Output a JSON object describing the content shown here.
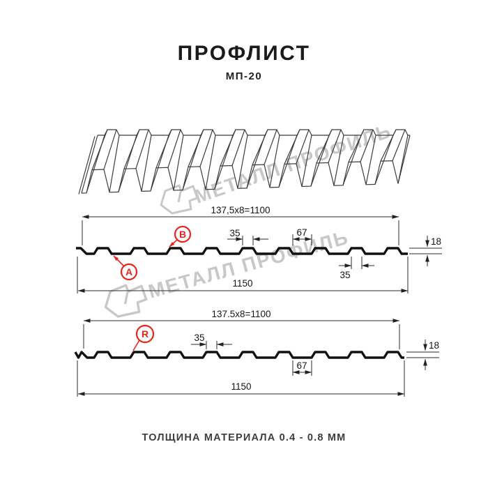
{
  "page": {
    "title": "ПРОФЛИСТ",
    "subtitle": "МП-20",
    "footer_note": "ТОЛЩИНА МАТЕРИАЛА 0.4 - 0.8 ММ"
  },
  "watermark": {
    "text": "МЕТАЛЛ ПРОФИЛЬ"
  },
  "colors": {
    "accent_red": "#e8251d",
    "line_dark": "#1c1c1c",
    "watermark_gray": "#c8c8c8"
  },
  "profile_top": {
    "module_width": "137,5x8=1100",
    "overall_width": "1150",
    "rib_top_width": "35",
    "valley_width": "67",
    "height": "18",
    "rib_bottom_width": "35",
    "label_a": "A",
    "label_b": "B"
  },
  "profile_bottom": {
    "module_width": "137.5x8=1100",
    "overall_width": "1150",
    "rib_top_width": "35",
    "valley_width": "67",
    "height": "18",
    "label_r": "R"
  }
}
